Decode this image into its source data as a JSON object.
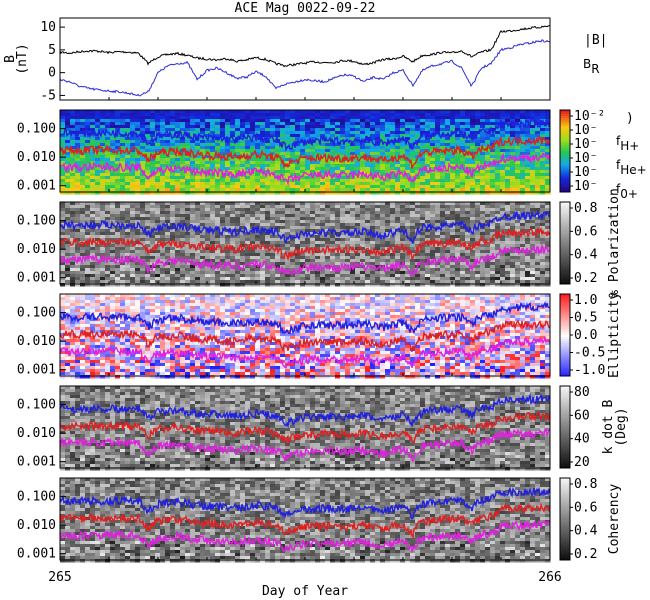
{
  "chart_data": {
    "type": "line",
    "title": "ACE Mag 0022-09-22",
    "xlabel": "Day of Year",
    "xlim": [
      265,
      266
    ],
    "x_ticks": [
      "265",
      "266"
    ],
    "panels": [
      {
        "id": "field",
        "ylabel_lines": [
          "B",
          "(nT)"
        ],
        "ylim": [
          -6,
          12
        ],
        "y_ticks": [
          "10",
          "5",
          "0",
          "-5"
        ],
        "legend": [
          {
            "name": "|B|",
            "color": "#000000"
          },
          {
            "name": "B",
            "sub": "R",
            "color": "#2b2bd6"
          }
        ],
        "series": [
          {
            "name": "|B|",
            "color": "#000000",
            "x": [
              265.0,
              265.02,
              265.04,
              265.06,
              265.08,
              265.1,
              265.12,
              265.14,
              265.16,
              265.18,
              265.2,
              265.22,
              265.24,
              265.26,
              265.28,
              265.3,
              265.32,
              265.34,
              265.36,
              265.38,
              265.4,
              265.42,
              265.44,
              265.46,
              265.48,
              265.5,
              265.52,
              265.54,
              265.56,
              265.58,
              265.6,
              265.62,
              265.64,
              265.66,
              265.68,
              265.7,
              265.72,
              265.74,
              265.76,
              265.78,
              265.8,
              265.82,
              265.84,
              265.86,
              265.88,
              265.9,
              265.92,
              265.94,
              265.96,
              265.98,
              266.0
            ],
            "values": [
              4.5,
              4.3,
              4.6,
              4.8,
              4.7,
              4.4,
              4.6,
              4.5,
              4.3,
              2.0,
              3.5,
              4.0,
              4.2,
              3.8,
              3.2,
              3.0,
              2.8,
              3.1,
              2.5,
              2.8,
              3.3,
              2.9,
              2.0,
              1.5,
              1.8,
              2.1,
              2.4,
              2.2,
              2.3,
              2.7,
              2.5,
              1.8,
              2.2,
              2.9,
              3.0,
              3.6,
              2.4,
              3.8,
              4.0,
              4.5,
              4.3,
              4.8,
              3.5,
              4.5,
              5.0,
              9.0,
              9.2,
              9.5,
              9.8,
              10.0,
              10.3
            ]
          },
          {
            "name": "B",
            "sub": "R",
            "color": "#2b2bd6",
            "x": [
              265.0,
              265.02,
              265.04,
              265.06,
              265.08,
              265.1,
              265.12,
              265.14,
              265.16,
              265.18,
              265.2,
              265.22,
              265.24,
              265.26,
              265.28,
              265.3,
              265.32,
              265.34,
              265.36,
              265.38,
              265.4,
              265.42,
              265.44,
              265.46,
              265.48,
              265.5,
              265.52,
              265.54,
              265.56,
              265.58,
              265.6,
              265.62,
              265.64,
              265.66,
              265.68,
              265.7,
              265.72,
              265.74,
              265.76,
              265.78,
              265.8,
              265.82,
              265.84,
              265.86,
              265.88,
              265.9,
              265.92,
              265.94,
              265.96,
              265.98,
              266.0
            ],
            "values": [
              -1.5,
              -2.0,
              -3.0,
              -3.5,
              -3.8,
              -4.0,
              -4.2,
              -4.5,
              -5.0,
              -4.2,
              0.0,
              1.5,
              2.0,
              2.2,
              -1.5,
              0.5,
              1.0,
              0.0,
              -1.2,
              -1.0,
              0.2,
              -0.8,
              -3.5,
              -2.5,
              -2.0,
              -1.5,
              -1.8,
              -2.0,
              -1.2,
              -0.5,
              -0.8,
              -2.0,
              -1.0,
              -1.5,
              0.0,
              0.5,
              -2.8,
              0.5,
              1.5,
              2.0,
              2.5,
              1.0,
              -3.0,
              1.0,
              2.0,
              5.0,
              5.5,
              6.2,
              6.5,
              7.0,
              6.8
            ]
          }
        ]
      },
      {
        "id": "power",
        "ylim_log": [
          0.0006,
          0.45
        ],
        "y_ticks": [
          "0.100",
          "0.010",
          "0.001"
        ],
        "colorbar": {
          "type": "rainbow",
          "ticks": [
            "10⁻²",
            "10⁻",
            "10⁻",
            "10⁻",
            "10⁻",
            "10⁻"
          ],
          "label": ")"
        },
        "legend": [
          {
            "name": "f",
            "sub": "H+",
            "color": "#2b2bd6"
          },
          {
            "name": "f",
            "sub": "He+",
            "color": "#e02020"
          },
          {
            "name": "f",
            "sub": "0+",
            "color": "#e040e0"
          }
        ]
      },
      {
        "id": "polarization",
        "ylim_log": [
          0.0006,
          0.45
        ],
        "y_ticks": [
          "0.100",
          "0.010",
          "0.001"
        ],
        "colorbar": {
          "type": "gray",
          "ticks": [
            "0.8",
            "0.6",
            "0.4",
            "0.2"
          ],
          "label": "% Polarization"
        }
      },
      {
        "id": "ellipticity",
        "ylim_log": [
          0.0006,
          0.45
        ],
        "y_ticks": [
          "0.100",
          "0.010",
          "0.001"
        ],
        "colorbar": {
          "type": "bwr",
          "ticks": [
            "1.0",
            "0.5",
            "0.0",
            "-0.5",
            "-1.0"
          ],
          "label": "Ellipticity"
        }
      },
      {
        "id": "kdotb",
        "ylim_log": [
          0.0006,
          0.45
        ],
        "y_ticks": [
          "0.100",
          "0.010",
          "0.001"
        ],
        "colorbar": {
          "type": "gray",
          "ticks": [
            "80",
            "60",
            "40",
            "20"
          ],
          "label_lines": [
            "k dot B",
            "(Deg)"
          ]
        }
      },
      {
        "id": "coherency",
        "ylim_log": [
          0.0006,
          0.45
        ],
        "y_ticks": [
          "0.100",
          "0.010",
          "0.001"
        ],
        "colorbar": {
          "type": "gray",
          "ticks": [
            "0.8",
            "0.6",
            "0.4",
            "0.2"
          ],
          "label": "Coherency"
        }
      }
    ],
    "gyro_lines": [
      {
        "name": "f",
        "sub": "H+",
        "color": "#2020e0",
        "x": [
          265.0,
          265.04,
          265.08,
          265.12,
          265.16,
          265.18,
          265.2,
          265.24,
          265.28,
          265.32,
          265.36,
          265.4,
          265.44,
          265.46,
          265.5,
          265.54,
          265.58,
          265.62,
          265.66,
          265.7,
          265.72,
          265.74,
          265.78,
          265.82,
          265.84,
          265.86,
          265.88,
          265.9,
          265.94,
          266.0
        ],
        "values": [
          0.07,
          0.068,
          0.072,
          0.07,
          0.068,
          0.03,
          0.055,
          0.064,
          0.05,
          0.045,
          0.04,
          0.05,
          0.04,
          0.022,
          0.035,
          0.038,
          0.036,
          0.04,
          0.03,
          0.045,
          0.02,
          0.055,
          0.065,
          0.07,
          0.04,
          0.075,
          0.08,
          0.14,
          0.15,
          0.16
        ]
      },
      {
        "name": "f",
        "sub": "He+",
        "color": "#e02020",
        "x": [
          265.0,
          265.04,
          265.08,
          265.12,
          265.16,
          265.18,
          265.2,
          265.24,
          265.28,
          265.32,
          265.36,
          265.4,
          265.44,
          265.46,
          265.5,
          265.54,
          265.58,
          265.62,
          265.66,
          265.7,
          265.72,
          265.74,
          265.78,
          265.82,
          265.84,
          265.86,
          265.88,
          265.9,
          265.94,
          266.0
        ],
        "values": [
          0.018,
          0.017,
          0.018,
          0.0175,
          0.017,
          0.0075,
          0.014,
          0.016,
          0.0125,
          0.011,
          0.01,
          0.0125,
          0.01,
          0.0055,
          0.009,
          0.0095,
          0.009,
          0.01,
          0.0075,
          0.011,
          0.005,
          0.014,
          0.016,
          0.0175,
          0.01,
          0.019,
          0.02,
          0.035,
          0.038,
          0.04
        ]
      },
      {
        "name": "f",
        "sub": "0+",
        "color": "#e020e0",
        "x": [
          265.0,
          265.04,
          265.08,
          265.12,
          265.16,
          265.18,
          265.2,
          265.24,
          265.28,
          265.32,
          265.36,
          265.4,
          265.44,
          265.46,
          265.5,
          265.54,
          265.58,
          265.62,
          265.66,
          265.7,
          265.72,
          265.74,
          265.78,
          265.82,
          265.84,
          265.86,
          265.88,
          265.9,
          265.94,
          266.0
        ],
        "values": [
          0.0045,
          0.0043,
          0.0045,
          0.0044,
          0.0043,
          0.0019,
          0.0035,
          0.004,
          0.0031,
          0.0028,
          0.0025,
          0.0031,
          0.0025,
          0.0014,
          0.0022,
          0.0024,
          0.0022,
          0.0025,
          0.0019,
          0.0028,
          0.0013,
          0.0035,
          0.004,
          0.0044,
          0.0025,
          0.0047,
          0.005,
          0.0088,
          0.0095,
          0.01
        ]
      }
    ]
  }
}
